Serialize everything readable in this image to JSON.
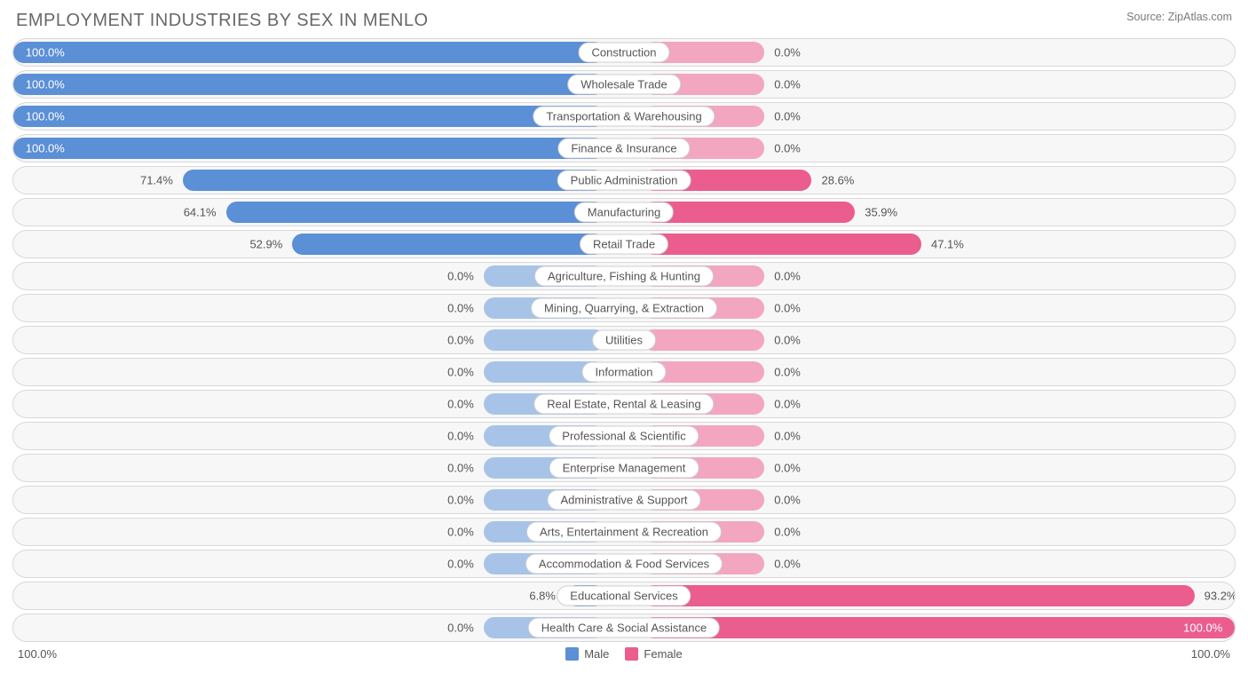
{
  "title": "EMPLOYMENT INDUSTRIES BY SEX IN MENLO",
  "source": "Source: ZipAtlas.com",
  "colors": {
    "male_full": "#5b8fd6",
    "male_soft": "#a7c3e8",
    "female_full": "#ea5d8e",
    "female_soft": "#f2a6c0",
    "row_bg": "#f7f7f7",
    "row_border": "#d8d8d8",
    "text": "#555555",
    "on_bar_text": "#ffffff"
  },
  "axis": {
    "left": "100.0%",
    "right": "100.0%"
  },
  "legend": {
    "male": "Male",
    "female": "Female"
  },
  "layout": {
    "half_width_pct": 48.5,
    "center_offset_pct": 1.5,
    "min_bar_pct": 10.0,
    "label_pad_pct": 0.8
  },
  "rows": [
    {
      "label": "Construction",
      "male": 100.0,
      "female": 0.0
    },
    {
      "label": "Wholesale Trade",
      "male": 100.0,
      "female": 0.0
    },
    {
      "label": "Transportation & Warehousing",
      "male": 100.0,
      "female": 0.0
    },
    {
      "label": "Finance & Insurance",
      "male": 100.0,
      "female": 0.0
    },
    {
      "label": "Public Administration",
      "male": 71.4,
      "female": 28.6
    },
    {
      "label": "Manufacturing",
      "male": 64.1,
      "female": 35.9
    },
    {
      "label": "Retail Trade",
      "male": 52.9,
      "female": 47.1
    },
    {
      "label": "Agriculture, Fishing & Hunting",
      "male": 0.0,
      "female": 0.0
    },
    {
      "label": "Mining, Quarrying, & Extraction",
      "male": 0.0,
      "female": 0.0
    },
    {
      "label": "Utilities",
      "male": 0.0,
      "female": 0.0
    },
    {
      "label": "Information",
      "male": 0.0,
      "female": 0.0
    },
    {
      "label": "Real Estate, Rental & Leasing",
      "male": 0.0,
      "female": 0.0
    },
    {
      "label": "Professional & Scientific",
      "male": 0.0,
      "female": 0.0
    },
    {
      "label": "Enterprise Management",
      "male": 0.0,
      "female": 0.0
    },
    {
      "label": "Administrative & Support",
      "male": 0.0,
      "female": 0.0
    },
    {
      "label": "Arts, Entertainment & Recreation",
      "male": 0.0,
      "female": 0.0
    },
    {
      "label": "Accommodation & Food Services",
      "male": 0.0,
      "female": 0.0
    },
    {
      "label": "Educational Services",
      "male": 6.8,
      "female": 93.2
    },
    {
      "label": "Health Care & Social Assistance",
      "male": 0.0,
      "female": 100.0
    }
  ]
}
